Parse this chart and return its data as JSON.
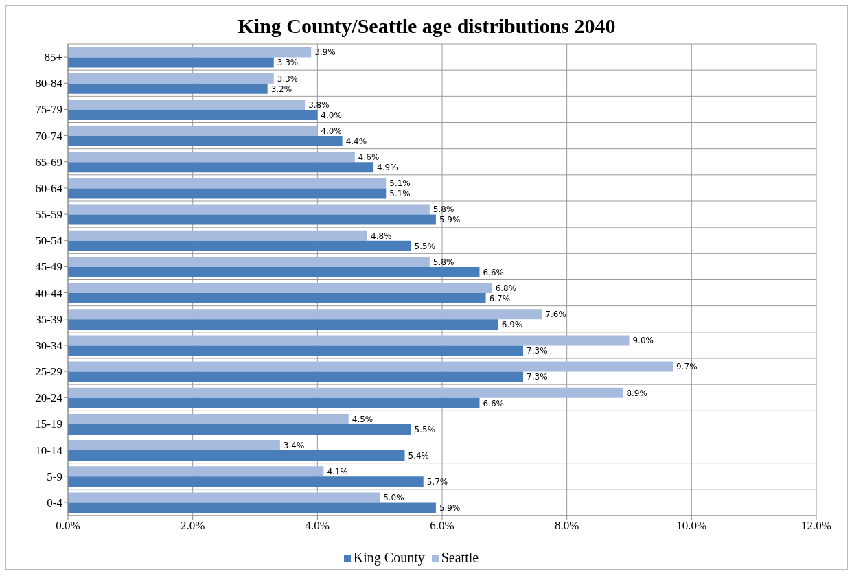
{
  "chart_data": {
    "type": "bar",
    "orientation": "horizontal",
    "title": "King County/Seattle age distributions 2040",
    "categories": [
      "85+",
      "80-84",
      "75-79",
      "70-74",
      "65-69",
      "60-64",
      "55-59",
      "50-54",
      "45-49",
      "40-44",
      "35-39",
      "30-34",
      "25-29",
      "20-24",
      "15-19",
      "10-14",
      "5-9",
      "0-4"
    ],
    "series": [
      {
        "name": "Seattle",
        "color": "#a7bbdf",
        "values": [
          3.9,
          3.3,
          3.8,
          4.0,
          4.6,
          5.1,
          5.8,
          4.8,
          5.8,
          6.8,
          7.6,
          9.0,
          9.7,
          8.9,
          4.5,
          3.4,
          4.1,
          5.0
        ],
        "value_labels": [
          "3.9%",
          "3.3%",
          "3.8%",
          "4.0%",
          "4.6%",
          "5.1%",
          "5.8%",
          "4.8%",
          "5.8%",
          "6.8%",
          "7.6%",
          "9.0%",
          "9.7%",
          "8.9%",
          "4.5%",
          "3.4%",
          "4.1%",
          "5.0%"
        ]
      },
      {
        "name": "King County",
        "color": "#4a7ebb",
        "values": [
          3.3,
          3.2,
          4.0,
          4.4,
          4.9,
          5.1,
          5.9,
          5.5,
          6.6,
          6.7,
          6.9,
          7.3,
          7.3,
          6.6,
          5.5,
          5.4,
          5.7,
          5.9
        ],
        "value_labels": [
          "3.3%",
          "3.2%",
          "4.0%",
          "4.4%",
          "4.9%",
          "5.1%",
          "5.9%",
          "5.5%",
          "6.6%",
          "6.7%",
          "6.9%",
          "7.3%",
          "7.3%",
          "6.6%",
          "5.5%",
          "5.4%",
          "5.7%",
          "5.9%"
        ]
      }
    ],
    "xlim": [
      0,
      12
    ],
    "xticks": [
      {
        "value": 0,
        "label": "0.0%"
      },
      {
        "value": 2,
        "label": "2.0%"
      },
      {
        "value": 4,
        "label": "4.0%"
      },
      {
        "value": 6,
        "label": "6.0%"
      },
      {
        "value": 8,
        "label": "8.0%"
      },
      {
        "value": 10,
        "label": "10.0%"
      },
      {
        "value": 12,
        "label": "12.0%"
      }
    ],
    "grid": true,
    "legend": "bottom"
  }
}
